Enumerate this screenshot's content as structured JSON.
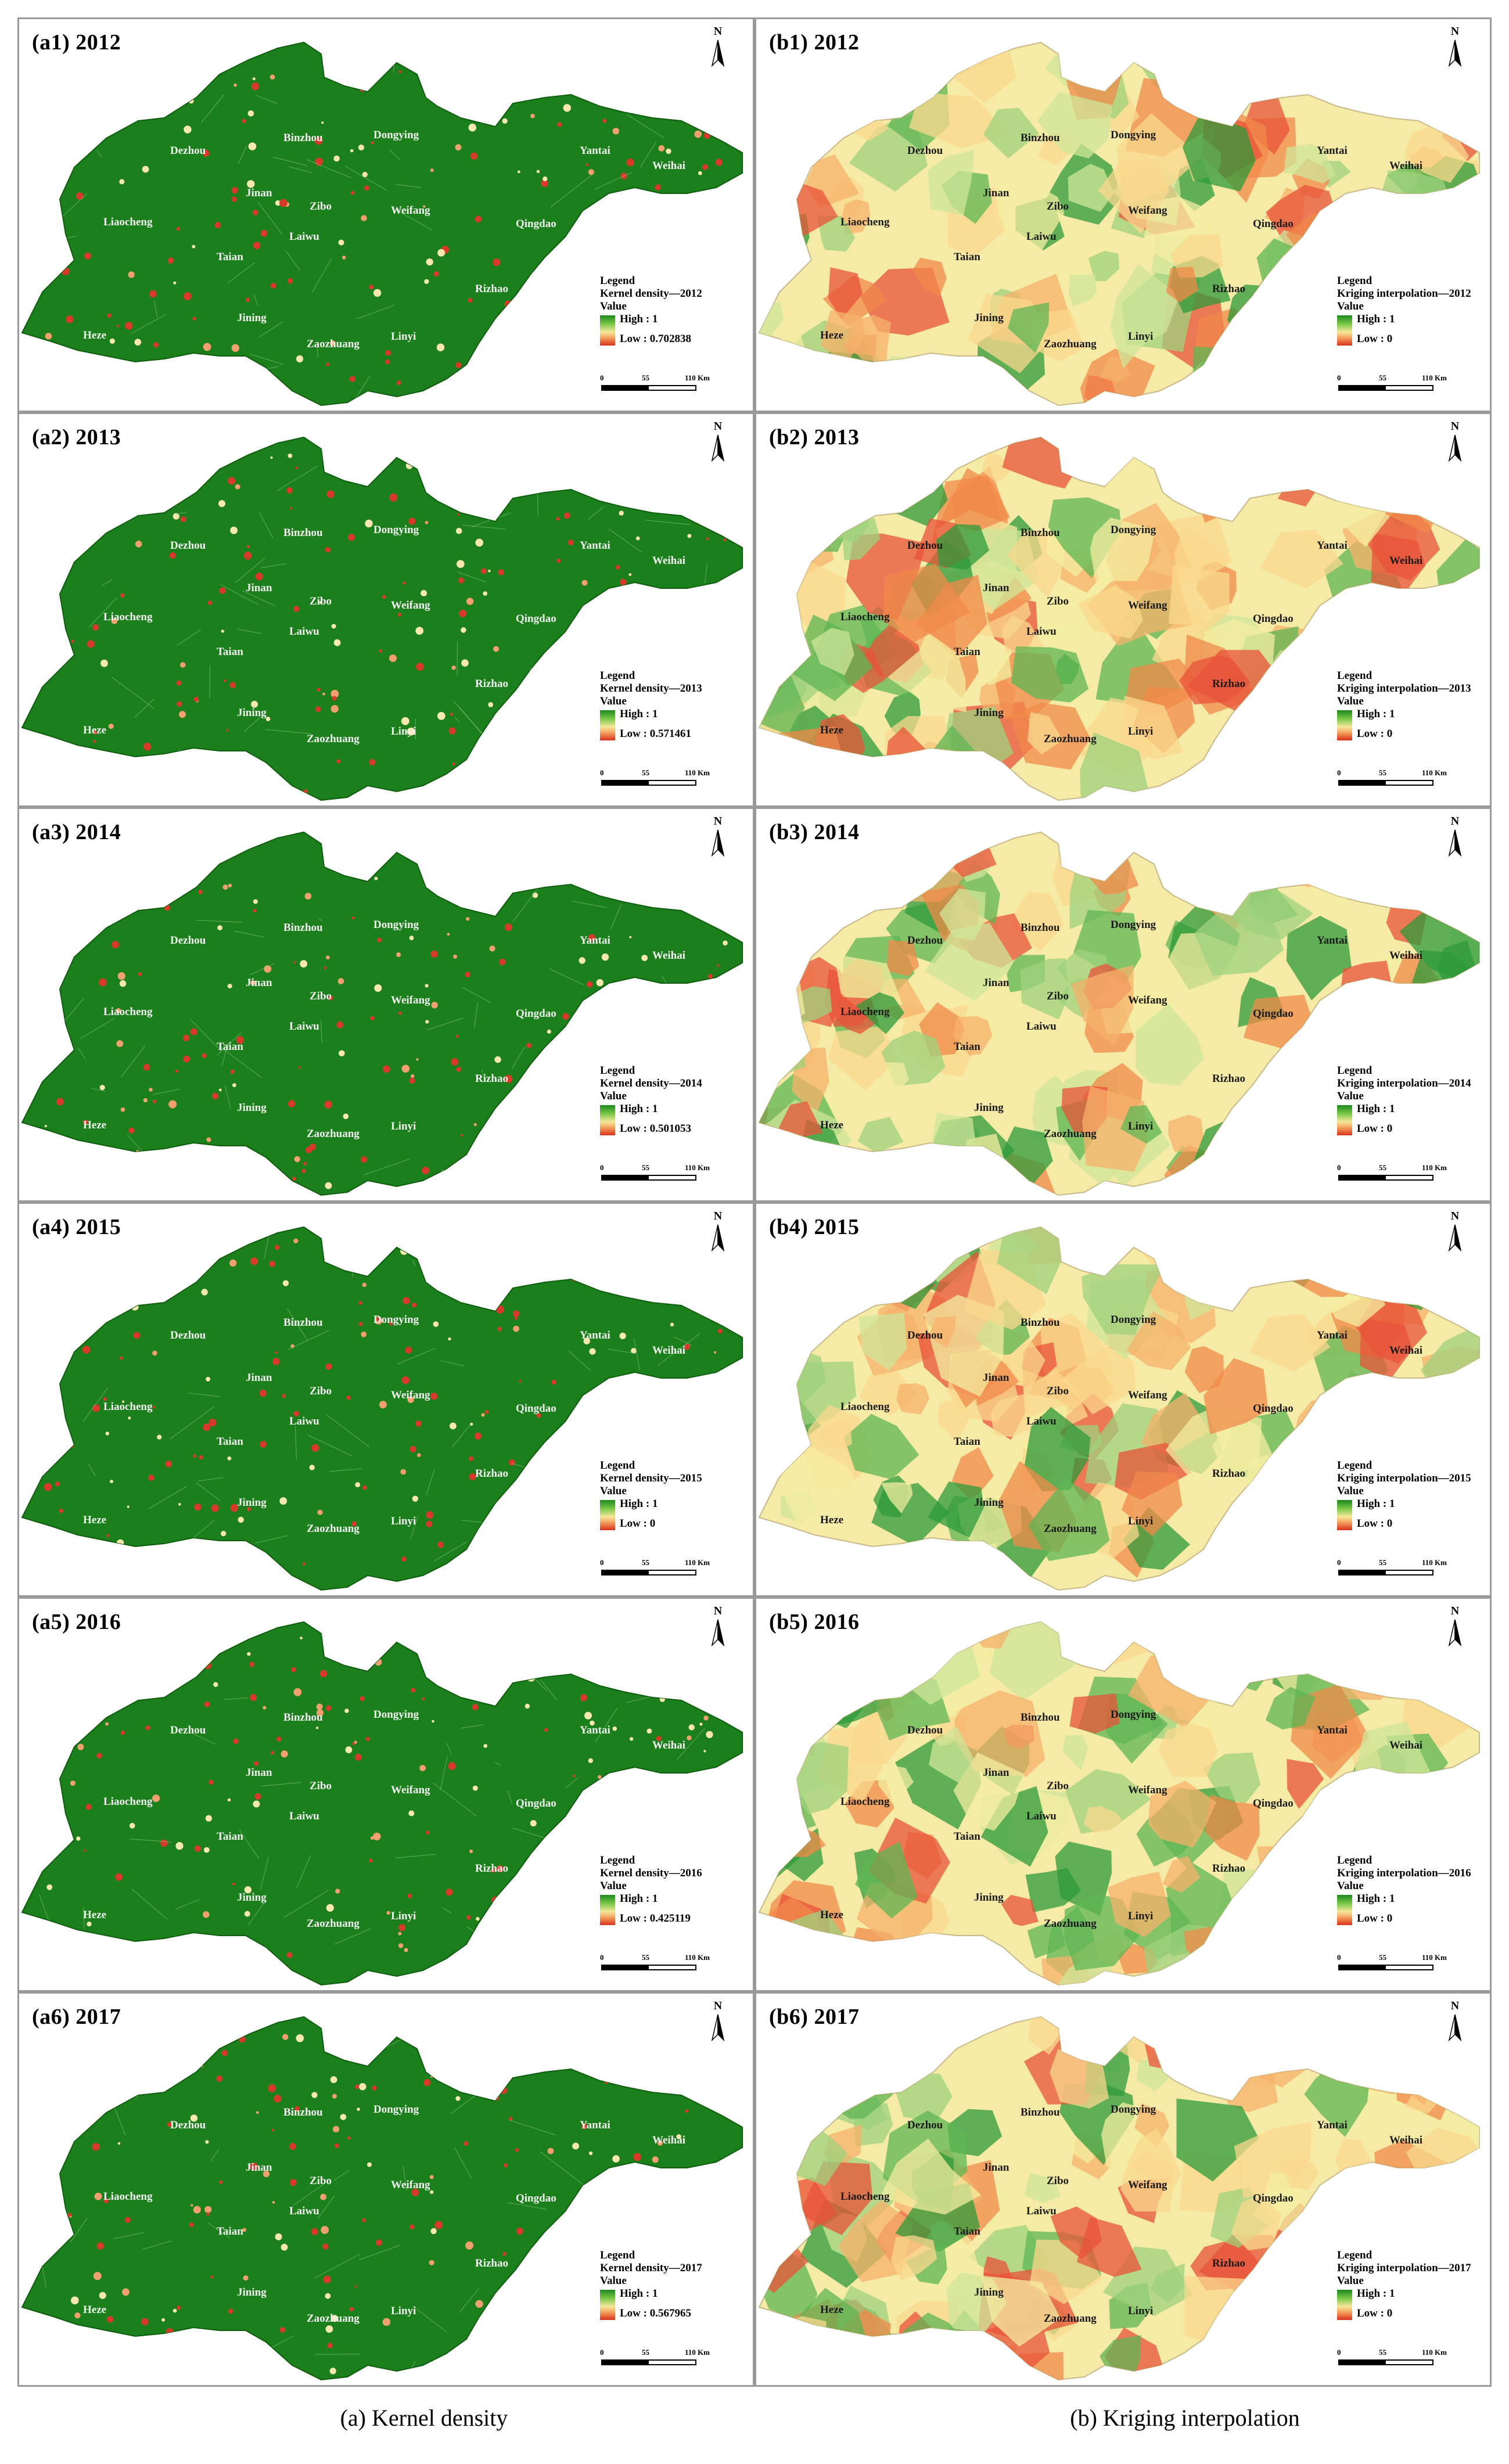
{
  "panels": [
    {
      "label": "(a1) 2012",
      "legend_title": "Legend",
      "legend_sub": "Kernel density—2012",
      "value_label": "Value",
      "high": "High : 1",
      "low": "Low : 0.702838",
      "type": "kernel"
    },
    {
      "label": "(b1) 2012",
      "legend_title": "Legend",
      "legend_sub": "Kriging interpolation—2012",
      "value_label": "Value",
      "high": "High : 1",
      "low": "Low : 0",
      "type": "kriging"
    },
    {
      "label": "(a2) 2013",
      "legend_title": "Legend",
      "legend_sub": "Kernel density—2013",
      "value_label": "Value",
      "high": "High : 1",
      "low": "Low : 0.571461",
      "type": "kernel"
    },
    {
      "label": "(b2) 2013",
      "legend_title": "Legend",
      "legend_sub": "Kriging interpolation—2013",
      "value_label": "Value",
      "high": "High : 1",
      "low": "Low : 0",
      "type": "kriging"
    },
    {
      "label": "(a3) 2014",
      "legend_title": "Legend",
      "legend_sub": "Kernel density—2014",
      "value_label": "Value",
      "high": "High : 1",
      "low": "Low : 0.501053",
      "type": "kernel"
    },
    {
      "label": "(b3) 2014",
      "legend_title": "Legend",
      "legend_sub": "Kriging interpolation—2014",
      "value_label": "Value",
      "high": "High : 1",
      "low": "Low : 0",
      "type": "kriging"
    },
    {
      "label": "(a4) 2015",
      "legend_title": "Legend",
      "legend_sub": "Kernel density—2015",
      "value_label": "Value",
      "high": "High : 1",
      "low": "Low : 0",
      "type": "kernel"
    },
    {
      "label": "(b4) 2015",
      "legend_title": "Legend",
      "legend_sub": "Kriging interpolation—2015",
      "value_label": "Value",
      "high": "High : 1",
      "low": "Low : 0",
      "type": "kriging"
    },
    {
      "label": "(a5) 2016",
      "legend_title": "Legend",
      "legend_sub": "Kernel density—2016",
      "value_label": "Value",
      "high": "High : 1",
      "low": "Low : 0.425119",
      "type": "kernel"
    },
    {
      "label": "(b5) 2016",
      "legend_title": "Legend",
      "legend_sub": "Kriging interpolation—2016",
      "value_label": "Value",
      "high": "High : 1",
      "low": "Low : 0",
      "type": "kriging"
    },
    {
      "label": "(a6) 2017",
      "legend_title": "Legend",
      "legend_sub": "Kernel density—2017",
      "value_label": "Value",
      "high": "High : 1",
      "low": "Low : 0.567965",
      "type": "kernel"
    },
    {
      "label": "(b6) 2017",
      "legend_title": "Legend",
      "legend_sub": "Kriging interpolation—2017",
      "value_label": "Value",
      "high": "High : 1",
      "low": "Low : 0",
      "type": "kriging"
    }
  ],
  "cities": [
    "Binzhou",
    "Dongying",
    "Dezhou",
    "Yantai",
    "Weihai",
    "Jinan",
    "Zibo",
    "Weifang",
    "Liaocheng",
    "Laiwu",
    "Qingdao",
    "Taian",
    "Rizhao",
    "Jining",
    "Heze",
    "Zaozhuang",
    "Linyi"
  ],
  "north_label": "N",
  "scale": {
    "ticks": [
      "0",
      "55",
      "110 Km"
    ]
  },
  "colors": {
    "kernel_green": "#1b7f1b",
    "ramp_high": "#1e8a1e",
    "ramp_mid": "#f5e79a",
    "ramp_low": "#d9301e"
  },
  "captions": {
    "left": "(a) Kernel density",
    "right": "(b) Kriging interpolation"
  }
}
